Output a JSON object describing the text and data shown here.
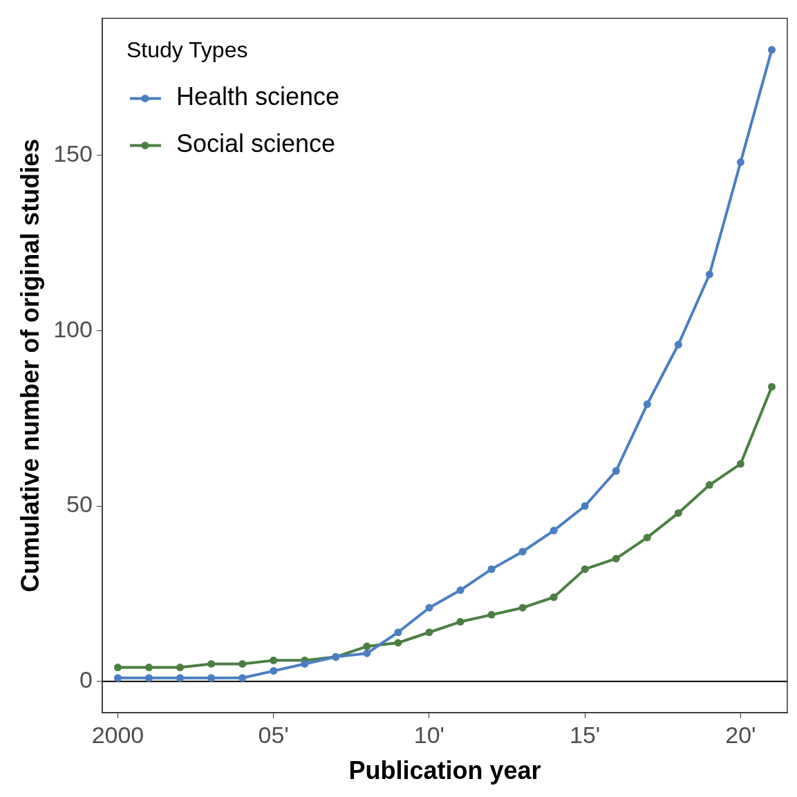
{
  "chart_data": {
    "type": "line",
    "xlabel": "Publication year",
    "ylabel": "Cumulative number of original studies",
    "legend_title": "Study Types",
    "categories": [
      "2000",
      null,
      null,
      null,
      null,
      "05'",
      null,
      null,
      null,
      null,
      "10'",
      null,
      null,
      null,
      null,
      "15'",
      null,
      null,
      null,
      null,
      "20'",
      null
    ],
    "series": [
      {
        "name": "Health science",
        "color": "#4a7ec3",
        "values": [
          1,
          1,
          1,
          1,
          1,
          3,
          5,
          7,
          8,
          14,
          21,
          26,
          32,
          37,
          43,
          50,
          60,
          79,
          96,
          116,
          148,
          180
        ]
      },
      {
        "name": "Social science",
        "color": "#4a7f41",
        "values": [
          4,
          4,
          4,
          5,
          5,
          6,
          6,
          7,
          10,
          11,
          14,
          17,
          19,
          21,
          24,
          32,
          35,
          41,
          48,
          56,
          62,
          84
        ]
      }
    ],
    "ylim": [
      -8.9,
      189
    ],
    "yticks": [
      0,
      50,
      100,
      150
    ],
    "ref_lines": [
      {
        "axis": "y",
        "value": 0,
        "color": "#000000"
      }
    ],
    "grid": false,
    "legend": "top left",
    "marker": "circle",
    "line_style": "solid"
  }
}
